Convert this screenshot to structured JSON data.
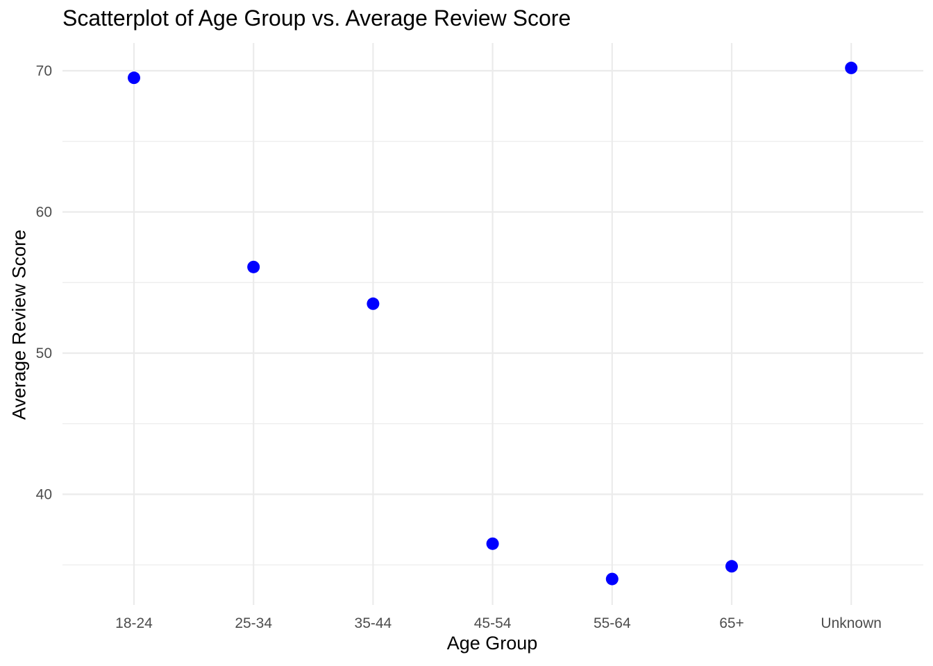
{
  "chart_data": {
    "type": "scatter",
    "title": "Scatterplot of Age Group vs. Average Review Score",
    "xlabel": "Age Group",
    "ylabel": "Average Review Score",
    "categories": [
      "18-24",
      "25-34",
      "35-44",
      "45-54",
      "55-64",
      "65+",
      "Unknown"
    ],
    "values": [
      69.5,
      56.1,
      53.5,
      36.5,
      34.0,
      34.9,
      70.2
    ],
    "ylim": [
      33.0,
      72.0
    ],
    "yticks": [
      40,
      50,
      60,
      70
    ],
    "y_minor_gridlines": [
      35,
      45,
      55,
      65
    ],
    "grid": true,
    "legend": "none",
    "point_color": "#0000ff",
    "grid_color": "#ebebeb",
    "tick_label_color": "#4d4d4d"
  }
}
